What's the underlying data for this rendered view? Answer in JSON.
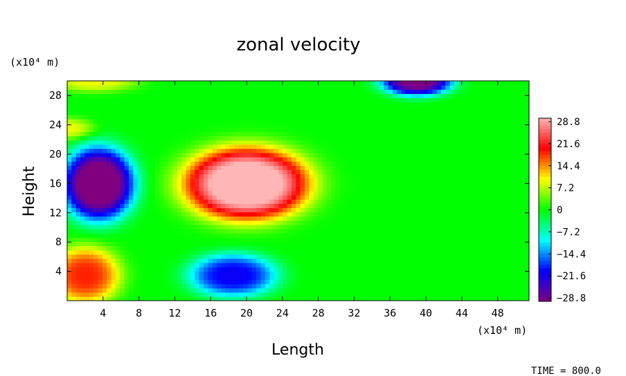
{
  "chart_data": {
    "type": "heatmap",
    "title": "zonal velocity",
    "xlabel": "Length",
    "ylabel": "Height",
    "x_unit_label": "(x10⁴ m)",
    "y_unit_label": "(x10⁴ m)",
    "footer": "TIME = 800.0",
    "xlim": [
      0,
      51.5
    ],
    "ylim": [
      0,
      30
    ],
    "x_ticks": [
      "4",
      "8",
      "12",
      "16",
      "20",
      "24",
      "28",
      "32",
      "36",
      "40",
      "44",
      "48"
    ],
    "y_ticks": [
      "4",
      "8",
      "12",
      "16",
      "20",
      "24",
      "28"
    ],
    "colorbar": {
      "min": -28.8,
      "max": 28.8,
      "labels": [
        "28.8",
        "21.6",
        "14.4",
        "7.2",
        "0",
        "−7.2",
        "−14.4",
        "−21.6",
        "−28.8"
      ],
      "colors": [
        "#800080",
        "#0000ff",
        "#00ffff",
        "#00ff00",
        "#ffff00",
        "#ff0000",
        "#ffb6b6"
      ]
    },
    "features": [
      {
        "x": 3.5,
        "y": 16,
        "rx": 4,
        "ry": 5,
        "value": -34
      },
      {
        "x": 20,
        "y": 16,
        "rx": 7,
        "ry": 5,
        "value": 34
      },
      {
        "x": 39,
        "y": 30,
        "rx": 4,
        "ry": 2,
        "value": -30
      },
      {
        "x": 18.5,
        "y": 3.5,
        "rx": 5,
        "ry": 3,
        "value": -20
      },
      {
        "x": 2,
        "y": 3.5,
        "rx": 4,
        "ry": 4,
        "value": 18
      },
      {
        "x": 3,
        "y": 30,
        "rx": 5,
        "ry": 1.5,
        "value": 9
      },
      {
        "x": 0,
        "y": 23.5,
        "rx": 3,
        "ry": 1.5,
        "value": 9
      }
    ]
  }
}
